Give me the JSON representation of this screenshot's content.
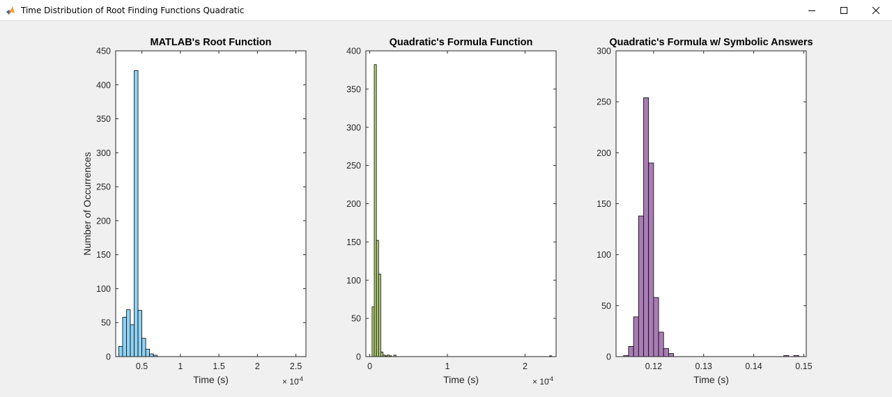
{
  "window": {
    "title": "Time Distribution of Root Finding Functions Quadratic",
    "controls": {
      "minimize": "minimize-icon",
      "maximize": "maximize-icon",
      "close": "close-icon"
    }
  },
  "chart_data": [
    {
      "type": "bar",
      "title": "MATLAB's Root Function",
      "xlabel": "Time (s)",
      "ylabel": "Number of Occurrences",
      "x_exponent": "×10⁻⁴",
      "x_exponent_base": "× 10",
      "x_exponent_power": "-4",
      "xlim": [
        0.16,
        2.63
      ],
      "ylim": [
        0,
        450
      ],
      "xticks": [
        0.5,
        1,
        1.5,
        2,
        2.5
      ],
      "xtick_labels": [
        "0.5",
        "1",
        "1.5",
        "2",
        "2.5"
      ],
      "yticks": [
        0,
        50,
        100,
        150,
        200,
        250,
        300,
        350,
        400,
        450
      ],
      "ytick_labels": [
        "0",
        "50",
        "100",
        "150",
        "200",
        "250",
        "300",
        "350",
        "400",
        "450"
      ],
      "bin_width": 0.05,
      "bin_edges_start": 0.2,
      "values": [
        15,
        58,
        69,
        47,
        421,
        68,
        27,
        11,
        4,
        2
      ],
      "bar_color": "#8fd3f6",
      "grid": false
    },
    {
      "type": "bar",
      "title": "Quadratic's Formula Function",
      "xlabel": "Time (s)",
      "ylabel": "",
      "x_exponent": "×10⁻⁴",
      "x_exponent_base": "× 10",
      "x_exponent_power": "-4",
      "xlim": [
        -0.05,
        2.4
      ],
      "ylim": [
        0,
        400
      ],
      "xticks": [
        0,
        1,
        2
      ],
      "xtick_labels": [
        "0",
        "1",
        "2"
      ],
      "yticks": [
        0,
        50,
        100,
        150,
        200,
        250,
        300,
        350,
        400
      ],
      "ytick_labels": [
        "0",
        "50",
        "100",
        "150",
        "200",
        "250",
        "300",
        "350",
        "400"
      ],
      "bin_width": 0.028,
      "bin_edges_start": 0.03,
      "values": [
        65,
        382,
        152,
        108,
        6,
        2,
        1,
        2,
        1,
        0,
        2
      ],
      "outliers": [
        {
          "x": 2.33,
          "value": 1
        }
      ],
      "bar_color": "#b8d47d",
      "grid": false
    },
    {
      "type": "bar",
      "title": "Quadratic's Formula w/ Symbolic Answers",
      "xlabel": "Time (s)",
      "ylabel": "",
      "xlim": [
        0.1125,
        0.1505
      ],
      "ylim": [
        0,
        300
      ],
      "xticks": [
        0.12,
        0.13,
        0.14,
        0.15
      ],
      "xtick_labels": [
        "0.12",
        "0.13",
        "0.14",
        "0.15"
      ],
      "yticks": [
        0,
        50,
        100,
        150,
        200,
        250,
        300
      ],
      "ytick_labels": [
        "0",
        "50",
        "100",
        "150",
        "200",
        "250",
        "300"
      ],
      "bin_width": 0.001,
      "bin_edges_start": 0.114,
      "values": [
        1,
        10,
        39,
        138,
        254,
        190,
        58,
        24,
        8,
        3
      ],
      "outliers": [
        {
          "x": 0.1465,
          "value": 1
        },
        {
          "x": 0.1485,
          "value": 1
        }
      ],
      "bar_color": "#a97cb5",
      "grid": false
    }
  ]
}
